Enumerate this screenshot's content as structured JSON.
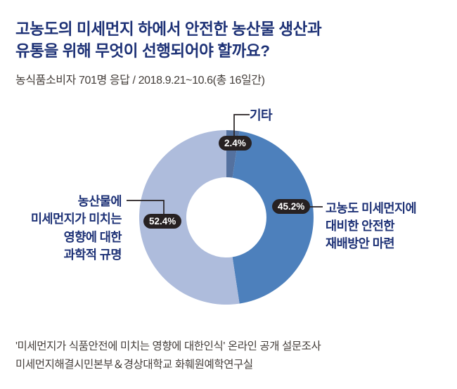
{
  "chart_data": {
    "type": "pie",
    "subtype": "donut",
    "title": "고농도의 미세먼지 하에서 안전한 농산물 생산과 유통을 위해 무엇이 선행되어야 할까요?",
    "title_lines": [
      "고농도의 미세먼지 하에서 안전한 농산물 생산과",
      "유통을 위해 무엇이 선행되어야 할까요?"
    ],
    "subtitle": "농식품소비자 701명 응답 / 2018.9.21~10.6(총 16일간)",
    "unit": "%",
    "direction": "clockwise",
    "start_angle_deg": 0,
    "inner_radius_ratio": 0.46,
    "segments": [
      {
        "label": "기타",
        "value": 2.4,
        "display": "2.4%",
        "color": "#54719f"
      },
      {
        "label": "고농도 미세먼지에 대비한 안전한 재배방안 마련",
        "value": 45.2,
        "display": "45.2%",
        "color": "#4d80bc"
      },
      {
        "label": "농산물에 미세먼지가 미치는 영향에 대한 과학적 규명",
        "value": 52.4,
        "display": "52.4%",
        "color": "#aebcdc"
      }
    ]
  },
  "callouts": {
    "other": "기타",
    "right_lines": [
      "고농도 미세먼지에",
      "대비한 안전한",
      "재배방안 마련"
    ],
    "left_lines": [
      "농산물에",
      "미세먼지가 미치는",
      "영향에 대한",
      "과학적 규명"
    ]
  },
  "footer": {
    "line1": "'미세먼지가 식품안전에 미치는 영향에 대한인식' 온라인 공개 설문조사",
    "line2": "미세먼지해결시민본부＆경상대학교 화훼원예학연구실"
  },
  "colors": {
    "title_navy": "#1d3176",
    "text_dark": "#443e3a",
    "badge_bg": "#272122",
    "connector": "#272122"
  }
}
